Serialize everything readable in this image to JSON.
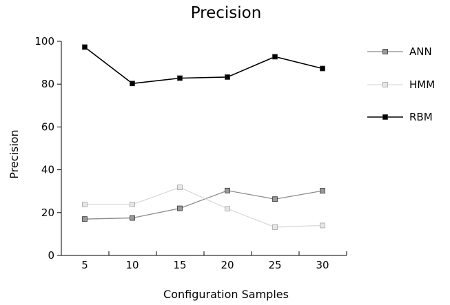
{
  "chart_data": {
    "type": "line",
    "title": "Precision",
    "xlabel": "Configuration Samples",
    "ylabel": "Precision",
    "categories": [
      "5",
      "10",
      "15",
      "20",
      "25",
      "30"
    ],
    "ylim": [
      0,
      100
    ],
    "yticks": [
      "0",
      "20",
      "40",
      "60",
      "80",
      "100"
    ],
    "grid": false,
    "legend_position": "right",
    "series": [
      {
        "name": "ANN",
        "color": "#8c8c8c",
        "marker_fill": "#999999",
        "values": [
          17,
          17.5,
          22,
          30.3,
          26.3,
          30.2
        ]
      },
      {
        "name": "HMM",
        "color": "#d9d9d9",
        "marker_fill": "#e6e6e6",
        "values": [
          23.8,
          23.8,
          31.8,
          21.8,
          13.2,
          14
        ]
      },
      {
        "name": "RBM",
        "color": "#000000",
        "marker_fill": "#000000",
        "values": [
          97.3,
          80.3,
          82.8,
          83.3,
          92.8,
          87.3
        ]
      }
    ]
  }
}
